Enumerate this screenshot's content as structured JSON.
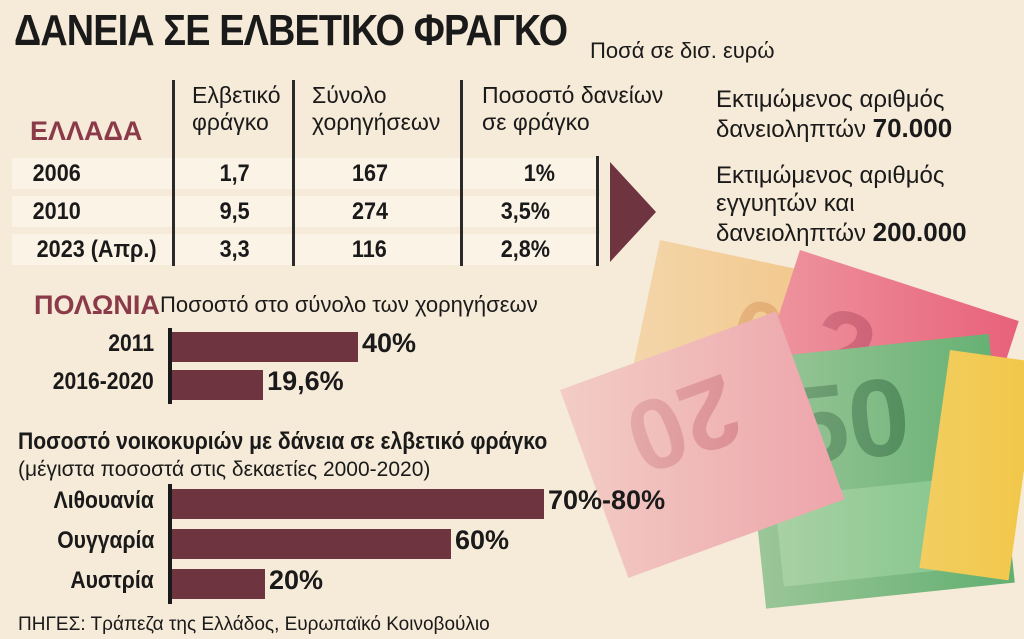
{
  "title": "ΔΑΝΕΙΑ ΣΕ ΕΛΒΕΤΙΚΟ ΦΡΑΓΚΟ",
  "subtitle": "Ποσά σε δισ. ευρώ",
  "greece": {
    "label": "ΕΛΛΑΔΑ",
    "headers": [
      "Ελβετικό φράγκο",
      "Σύνολο χορηγήσεων",
      "Ποσοστό δανείων σε φράγκο"
    ],
    "rows": [
      {
        "year": "2006",
        "chf": "1,7",
        "total": "167",
        "pct": "1%"
      },
      {
        "year": "2010",
        "chf": "9,5",
        "total": "274",
        "pct": "3,5%"
      },
      {
        "year": "2023 (Απρ.)",
        "chf": "3,3",
        "total": "116",
        "pct": "2,8%"
      }
    ]
  },
  "estimates": {
    "borrowers_label": "Εκτιμώμενος αριθμός δανειοληπτών",
    "borrowers_value": "70.000",
    "guarantors_label": "Εκτιμώμενος αριθμός εγγυητών και δανειοληπτών",
    "guarantors_value": "200.000"
  },
  "chart_data": [
    {
      "type": "bar",
      "title": "ΠΟΛΩΝΙΑ",
      "subtitle": "Ποσοστό στο σύνολο των χορηγήσεων",
      "categories": [
        "2011",
        "2016-2020"
      ],
      "values": [
        40,
        19.6
      ],
      "value_labels": [
        "40%",
        "19,6%"
      ],
      "xlim": [
        0,
        100
      ],
      "orientation": "horizontal",
      "bar_color": "#6e3440"
    },
    {
      "type": "bar",
      "title": "Ποσοστό νοικοκυριών με δάνεια σε ελβετικό φράγκο",
      "subtitle": "(μέγιστα ποσοστά στις δεκαετίες 2000-2020)",
      "categories": [
        "Λιθουανία",
        "Ουγγαρία",
        "Αυστρία"
      ],
      "values": [
        80,
        60,
        20
      ],
      "value_labels": [
        "70%-80%",
        "60%",
        "20%"
      ],
      "xlim": [
        0,
        100
      ],
      "orientation": "horizontal",
      "bar_color": "#6e3440"
    }
  ],
  "source": "ΠΗΓΕΣ: Τράπεζα της Ελλάδος, Ευρωπαϊκό Κοινοβούλιο",
  "colors": {
    "accent": "#8b3a4a",
    "bar": "#6e3440",
    "background": "#f6ead8"
  }
}
